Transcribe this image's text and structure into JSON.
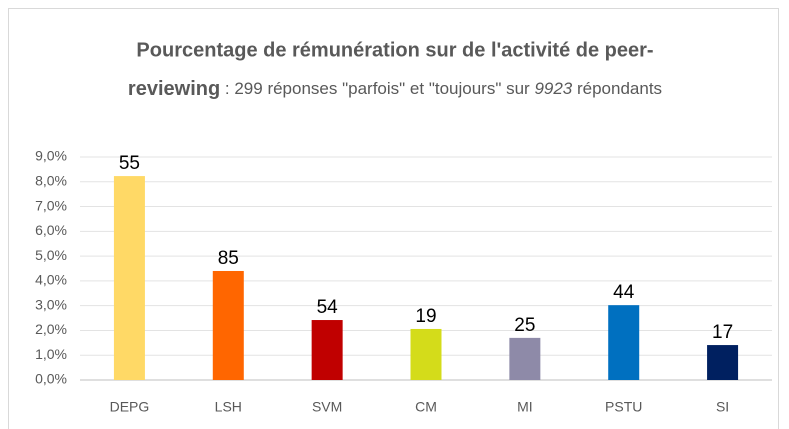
{
  "chart_data": {
    "type": "bar",
    "title": [
      "Pourcentage de rémunération sur de l'activité de peer-",
      "reviewing"
    ],
    "subtitle": [
      " : 299 réponses \"parfois\" et \"toujours\" sur ",
      "9923",
      " répondants"
    ],
    "categories": [
      "DEPG",
      "LSH",
      "SVM",
      "CM",
      "MI",
      "PSTU",
      "SI"
    ],
    "values": [
      8.23,
      4.4,
      2.42,
      2.06,
      1.7,
      3.02,
      1.41
    ],
    "data_labels": [
      55,
      85,
      54,
      19,
      25,
      44,
      17
    ],
    "colors": [
      "#ffd966",
      "#ff6600",
      "#c00000",
      "#d4dc1a",
      "#8e8aa8",
      "#0070c0",
      "#002060"
    ],
    "ylim": [
      0,
      9
    ],
    "yticks": [
      {
        "value": 0,
        "label": "0,0%"
      },
      {
        "value": 1,
        "label": "1,0%"
      },
      {
        "value": 2,
        "label": "2,0%"
      },
      {
        "value": 3,
        "label": "3,0%"
      },
      {
        "value": 4,
        "label": "4,0%"
      },
      {
        "value": 5,
        "label": "5,0%"
      },
      {
        "value": 6,
        "label": "6,0%"
      },
      {
        "value": 7,
        "label": "7,0%"
      },
      {
        "value": 8,
        "label": "8,0%"
      },
      {
        "value": 9,
        "label": "9,0%"
      }
    ],
    "grid": true
  }
}
